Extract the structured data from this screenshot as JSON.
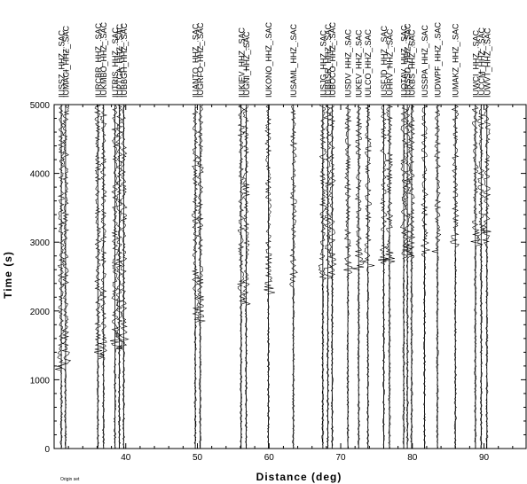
{
  "chart_data": {
    "type": "seismic-record-section",
    "xlabel": "Distance (deg)",
    "ylabel": "Time (s)",
    "xlim": [
      30,
      96
    ],
    "ylim": [
      0,
      5000
    ],
    "x_ticks": [
      40,
      50,
      60,
      70,
      80,
      90
    ],
    "y_ticks": [
      0,
      1000,
      2000,
      3000,
      4000,
      5000
    ],
    "footnote": "Origin set",
    "traces": [
      {
        "label": "IUSSZ_HHZ_.SAC",
        "distance": 31.0,
        "onset": 1150
      },
      {
        "label": "IUMACI_HHZ_.SAC",
        "distance": 31.6,
        "onset": 1150
      },
      {
        "label": "IURCBR_HHZ_.SAC",
        "distance": 36.1,
        "onset": 1300
      },
      {
        "label": "IUKMBO_HHZ_.SAC",
        "distance": 36.9,
        "onset": 1300
      },
      {
        "label": "IUTRIS_HHZ_.SAC",
        "distance": 38.5,
        "onset": 1450
      },
      {
        "label": "IUPTGA_HHZ_.SAC",
        "distance": 39.1,
        "onset": 1450
      },
      {
        "label": "IUBBGH_HHZ_.SAC",
        "distance": 39.7,
        "onset": 1450
      },
      {
        "label": "IUANTO_HHZ_.SAC",
        "distance": 49.7,
        "onset": 1850
      },
      {
        "label": "IUGRFO_HHZ_.SAC",
        "distance": 50.4,
        "onset": 1850
      },
      {
        "label": "IUKIEV_HHZ_.SAC",
        "distance": 56.1,
        "onset": 2100
      },
      {
        "label": "IUGNI_HHZ_.SAC",
        "distance": 56.8,
        "onset": 2100
      },
      {
        "label": "IUKONO_HHZ_.SAC",
        "distance": 59.9,
        "onset": 2250
      },
      {
        "label": "IUSAML_HHZ_.SAC",
        "distance": 63.4,
        "onset": 2350
      },
      {
        "label": "IUSJG_HHZ_.SAC",
        "distance": 67.5,
        "onset": 2450
      },
      {
        "label": "IUBBSR_HHZ_.SAC",
        "distance": 68.2,
        "onset": 2480
      },
      {
        "label": "IUBOCO_HHZ_.SAC",
        "distance": 68.8,
        "onset": 2500
      },
      {
        "label": "IUSDV_HHZ_.SAC",
        "distance": 71.0,
        "onset": 2550
      },
      {
        "label": "IUKEV_HHZ_.SAC",
        "distance": 72.5,
        "onset": 2600
      },
      {
        "label": "IULCO_HHZ_.SAC",
        "distance": 73.8,
        "onset": 2650
      },
      {
        "label": "IUSFJD_HHZ_.SAC",
        "distance": 76.0,
        "onset": 2700
      },
      {
        "label": "IUHRV_HHZ_.SAC",
        "distance": 76.8,
        "onset": 2720
      },
      {
        "label": "IUOTAV_HHZ_.SAC",
        "distance": 78.8,
        "onset": 2750
      },
      {
        "label": "IURSSD_HHZ_.SAC",
        "distance": 79.3,
        "onset": 2760
      },
      {
        "label": "IUKBS_HHZ_.SAC",
        "distance": 79.9,
        "onset": 2770
      },
      {
        "label": "IUSSPA_HHZ_.SAC",
        "distance": 81.7,
        "onset": 2800
      },
      {
        "label": "IUDWPF_HHZ_.SAC",
        "distance": 83.5,
        "onset": 2850
      },
      {
        "label": "IUMAKZ_HHZ_.SAC",
        "distance": 86.0,
        "onset": 2900
      },
      {
        "label": "IUWCI_HHZ_.SAC",
        "distance": 88.8,
        "onset": 2950
      },
      {
        "label": "IUCCM_HHZ_.SAC",
        "distance": 89.6,
        "onset": 2960
      },
      {
        "label": "IUWVT_HHZ_.SAC",
        "distance": 90.4,
        "onset": 2970
      }
    ]
  }
}
